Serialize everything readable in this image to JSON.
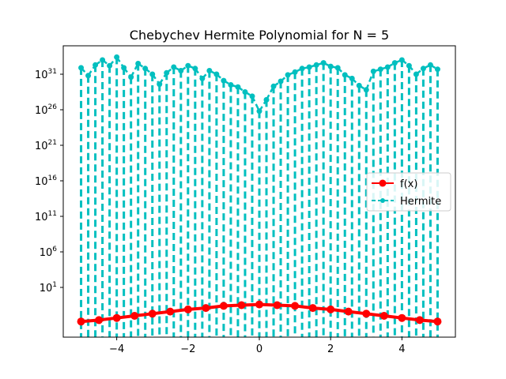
{
  "chart_data": {
    "type": "line",
    "title": "Chebychev Hermite Polynomial for N = 5",
    "xlabel": "",
    "ylabel": "",
    "xscale": "linear",
    "yscale": "log",
    "xlim": [
      -5.5,
      5.5
    ],
    "ylim_log10": [
      -6.0,
      35.0
    ],
    "x_ticks": [
      -4,
      -2,
      0,
      2,
      4
    ],
    "x_tick_labels": [
      "−4",
      "−2",
      "0",
      "2",
      "4"
    ],
    "y_ticks_exponent": [
      1,
      6,
      11,
      16,
      21,
      26,
      31
    ],
    "y_tick_base": "10",
    "grid": false,
    "legend": {
      "position": "center-right",
      "entries": [
        "f(x)",
        "Hermite"
      ]
    },
    "series": [
      {
        "name": "f(x)",
        "color": "#ff0000",
        "marker": "circle",
        "linestyle": "solid",
        "x": [
          -5.0,
          -4.5,
          -4.0,
          -3.5,
          -3.0,
          -2.5,
          -2.0,
          -1.5,
          -1.0,
          -0.5,
          0.0,
          0.5,
          1.0,
          1.5,
          2.0,
          2.5,
          3.0,
          3.5,
          4.0,
          4.5,
          5.0
        ],
        "y_log10": [
          -3.8,
          -3.6,
          -3.3,
          -3.0,
          -2.7,
          -2.4,
          -2.1,
          -1.9,
          -1.6,
          -1.5,
          -1.4,
          -1.5,
          -1.6,
          -1.9,
          -2.1,
          -2.4,
          -2.7,
          -3.0,
          -3.3,
          -3.6,
          -3.8
        ]
      },
      {
        "name": "Hermite",
        "color": "#00bfbf",
        "marker": "circle",
        "linestyle": "dashed",
        "x": [
          -5.0,
          -4.8,
          -4.6,
          -4.4,
          -4.2,
          -4.0,
          -3.8,
          -3.6,
          -3.4,
          -3.2,
          -3.0,
          -2.8,
          -2.6,
          -2.4,
          -2.2,
          -2.0,
          -1.8,
          -1.6,
          -1.4,
          -1.2,
          -1.0,
          -0.8,
          -0.6,
          -0.4,
          -0.2,
          0.0,
          0.2,
          0.4,
          0.6,
          0.8,
          1.0,
          1.2,
          1.4,
          1.6,
          1.8,
          2.0,
          2.2,
          2.4,
          2.6,
          2.8,
          3.0,
          3.2,
          3.4,
          3.6,
          3.8,
          4.0,
          4.2,
          4.4,
          4.6,
          4.8,
          5.0
        ],
        "y_log10": [
          31.9,
          30.8,
          32.3,
          33.0,
          32.2,
          33.4,
          31.9,
          30.6,
          32.5,
          31.8,
          31.0,
          29.6,
          31.2,
          32.0,
          31.5,
          32.2,
          31.8,
          30.4,
          31.5,
          31.0,
          30.1,
          29.5,
          29.2,
          28.5,
          27.9,
          25.8,
          27.4,
          29.3,
          30.0,
          30.9,
          31.3,
          31.8,
          32.0,
          32.3,
          32.6,
          32.1,
          31.9,
          30.9,
          30.4,
          29.4,
          28.8,
          31.4,
          31.7,
          32.0,
          32.6,
          33.0,
          32.2,
          31.0,
          31.8,
          32.3,
          31.7
        ]
      }
    ]
  }
}
